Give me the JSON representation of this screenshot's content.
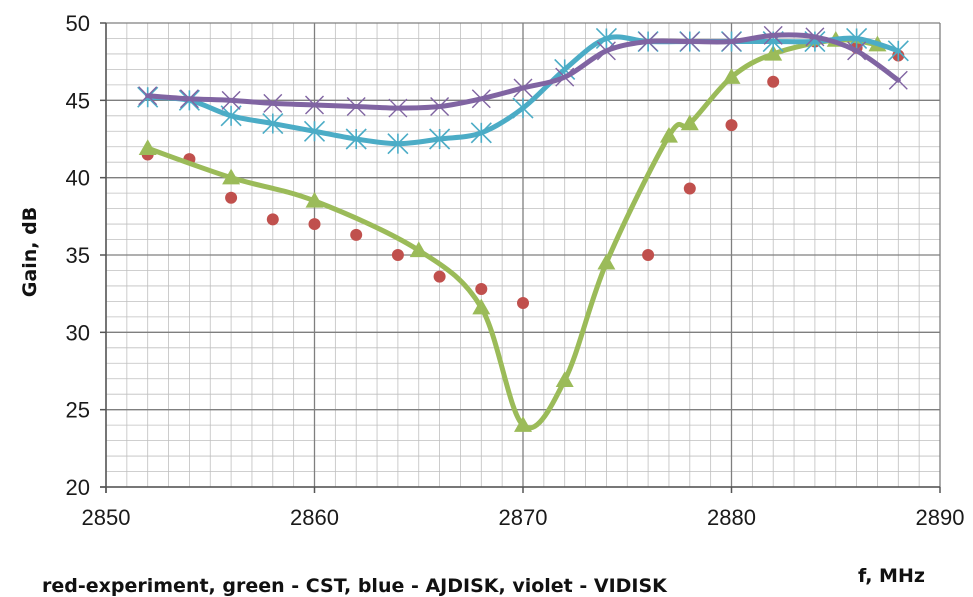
{
  "chart_data": {
    "type": "line",
    "xlabel": "f, MHz",
    "ylabel": "Gain, dB",
    "caption": "red-experiment, green - CST, blue - AJDISK, violet - VIDISK",
    "xlim": [
      2850,
      2890
    ],
    "ylim": [
      20,
      50
    ],
    "x_major_ticks": [
      2850,
      2860,
      2870,
      2880,
      2890
    ],
    "y_major_ticks": [
      20,
      25,
      30,
      35,
      40,
      45,
      50
    ],
    "x_tick_labels": [
      "2850",
      "2860",
      "2870",
      "2880",
      "2890"
    ],
    "y_tick_labels": [
      "20",
      "25",
      "30",
      "35",
      "40",
      "45",
      "50"
    ],
    "grid": true,
    "legend": "none",
    "series": [
      {
        "color": "#c0504d",
        "style": "markers",
        "marker": "circle",
        "x": [
          2852,
          2854,
          2856,
          2858,
          2860,
          2862,
          2864,
          2866,
          2868,
          2870,
          2876,
          2878,
          2880,
          2882,
          2884,
          2886,
          2888
        ],
        "y": [
          41.5,
          41.2,
          38.7,
          37.3,
          37.0,
          36.3,
          35.0,
          33.6,
          32.8,
          31.9,
          35.0,
          39.3,
          43.4,
          46.2,
          48.8,
          48.4,
          47.9
        ]
      },
      {
        "color": "#9bbb59",
        "style": "line+markers",
        "marker": "triangle",
        "x": [
          2852,
          2856,
          2860,
          2865,
          2868,
          2870,
          2872,
          2874,
          2877,
          2878,
          2880,
          2882,
          2885,
          2887
        ],
        "y": [
          41.9,
          40.0,
          38.5,
          35.3,
          31.6,
          24.0,
          26.9,
          34.5,
          42.7,
          43.5,
          46.5,
          48.0,
          48.9,
          48.6
        ]
      },
      {
        "color": "#4bacc6",
        "style": "line+markers",
        "marker": "asterisk",
        "x": [
          2852,
          2854,
          2856,
          2858,
          2860,
          2862,
          2864,
          2866,
          2868,
          2870,
          2872,
          2874,
          2876,
          2878,
          2880,
          2882,
          2884,
          2886,
          2888
        ],
        "y": [
          45.2,
          45.0,
          44.0,
          43.5,
          43.0,
          42.5,
          42.2,
          42.5,
          42.9,
          44.5,
          47.0,
          49.0,
          48.8,
          48.8,
          48.8,
          48.8,
          48.8,
          49.0,
          48.2
        ]
      },
      {
        "color": "#8064a2",
        "style": "line+markers",
        "marker": "x",
        "x": [
          2852,
          2854,
          2856,
          2858,
          2860,
          2862,
          2864,
          2866,
          2868,
          2870,
          2872,
          2874,
          2876,
          2878,
          2880,
          2882,
          2884,
          2886,
          2888
        ],
        "y": [
          45.3,
          45.1,
          45.0,
          44.8,
          44.7,
          44.6,
          44.5,
          44.6,
          45.1,
          45.8,
          46.5,
          48.2,
          48.8,
          48.8,
          48.8,
          49.2,
          49.1,
          48.2,
          46.3
        ]
      }
    ]
  }
}
